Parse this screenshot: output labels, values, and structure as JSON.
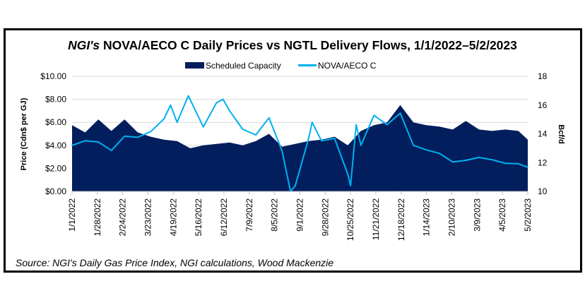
{
  "chart_data": {
    "type": "area+line",
    "title_italic": "NGI's",
    "title_rest": " NOVA/AECO C Daily Prices vs NGTL Delivery Flows, 1/1/2022–5/2/2023",
    "legend_position": "top",
    "ylabel_left": "Price (Cdn$ per GJ)",
    "ylabel_right": "Bcf/d",
    "ylim_left": [
      0,
      10
    ],
    "ylim_right": [
      10,
      18
    ],
    "yticks_left": [
      "$0.00",
      "$2.00",
      "$4.00",
      "$6.00",
      "$8.00",
      "$10.00"
    ],
    "yticks_right": [
      "10",
      "12",
      "14",
      "16",
      "18"
    ],
    "xlim": [
      "2022-01-01",
      "2023-05-02"
    ],
    "xticks": [
      "1/1/2022",
      "1/28/2022",
      "2/24/2022",
      "3/23/2022",
      "4/19/2022",
      "5/16/2022",
      "6/12/2022",
      "7/9/2022",
      "8/5/2022",
      "9/1/2022",
      "9/28/2022",
      "10/25/2022",
      "11/21/2022",
      "12/18/2022",
      "1/14/2023",
      "2/10/2023",
      "3/9/2023",
      "4/5/2023",
      "5/2/2023"
    ],
    "grid": "horizontal",
    "series": [
      {
        "name": "Scheduled Capacity",
        "type": "area",
        "axis": "right",
        "color": "#031e5c",
        "x": [
          "2022-01-01",
          "2022-01-15",
          "2022-01-29",
          "2022-02-12",
          "2022-02-26",
          "2022-03-12",
          "2022-03-26",
          "2022-04-09",
          "2022-04-23",
          "2022-05-07",
          "2022-05-21",
          "2022-06-04",
          "2022-06-18",
          "2022-07-02",
          "2022-07-16",
          "2022-07-30",
          "2022-08-13",
          "2022-08-27",
          "2022-09-10",
          "2022-09-24",
          "2022-10-08",
          "2022-10-22",
          "2022-11-05",
          "2022-11-19",
          "2022-12-03",
          "2022-12-17",
          "2022-12-31",
          "2023-01-14",
          "2023-01-28",
          "2023-02-11",
          "2023-02-25",
          "2023-03-11",
          "2023-03-25",
          "2023-04-08",
          "2023-04-22",
          "2023-05-02"
        ],
        "values": [
          14.6,
          14.1,
          15.0,
          14.2,
          15.0,
          14.1,
          13.8,
          13.6,
          13.5,
          13.0,
          13.2,
          13.3,
          13.4,
          13.2,
          13.5,
          14.0,
          13.1,
          13.3,
          13.5,
          13.6,
          13.8,
          13.2,
          14.2,
          14.6,
          14.8,
          16.0,
          14.8,
          14.6,
          14.5,
          14.3,
          14.9,
          14.3,
          14.2,
          14.3,
          14.2,
          13.6
        ]
      },
      {
        "name": "NOVA/AECO C",
        "type": "line",
        "axis": "left",
        "color": "#00b0f0",
        "x": [
          "2022-01-01",
          "2022-01-15",
          "2022-01-29",
          "2022-02-12",
          "2022-02-26",
          "2022-03-12",
          "2022-03-26",
          "2022-04-09",
          "2022-04-16",
          "2022-04-23",
          "2022-05-05",
          "2022-05-21",
          "2022-06-04",
          "2022-06-11",
          "2022-06-18",
          "2022-07-02",
          "2022-07-16",
          "2022-07-30",
          "2022-08-13",
          "2022-08-22",
          "2022-08-27",
          "2022-09-10",
          "2022-09-14",
          "2022-09-24",
          "2022-10-08",
          "2022-10-22",
          "2022-10-25",
          "2022-10-31",
          "2022-11-05",
          "2022-11-19",
          "2022-12-03",
          "2022-12-17",
          "2022-12-31",
          "2023-01-14",
          "2023-01-28",
          "2023-02-11",
          "2023-02-25",
          "2023-03-11",
          "2023-03-25",
          "2023-04-08",
          "2023-04-22",
          "2023-05-02"
        ],
        "values": [
          4.0,
          4.4,
          4.3,
          3.55,
          4.8,
          4.7,
          5.2,
          6.3,
          7.5,
          6.0,
          8.3,
          5.6,
          7.7,
          8.0,
          7.0,
          5.4,
          4.9,
          6.4,
          3.5,
          0.0,
          0.5,
          4.5,
          6.0,
          4.4,
          4.6,
          1.5,
          0.5,
          5.8,
          4.0,
          6.6,
          5.8,
          6.8,
          4.0,
          3.6,
          3.3,
          2.55,
          2.7,
          2.95,
          2.75,
          2.45,
          2.4,
          2.1
        ]
      }
    ]
  },
  "source": "Source: NGI's Daily Gas Price Index, NGI calculations, Wood Mackenzie"
}
